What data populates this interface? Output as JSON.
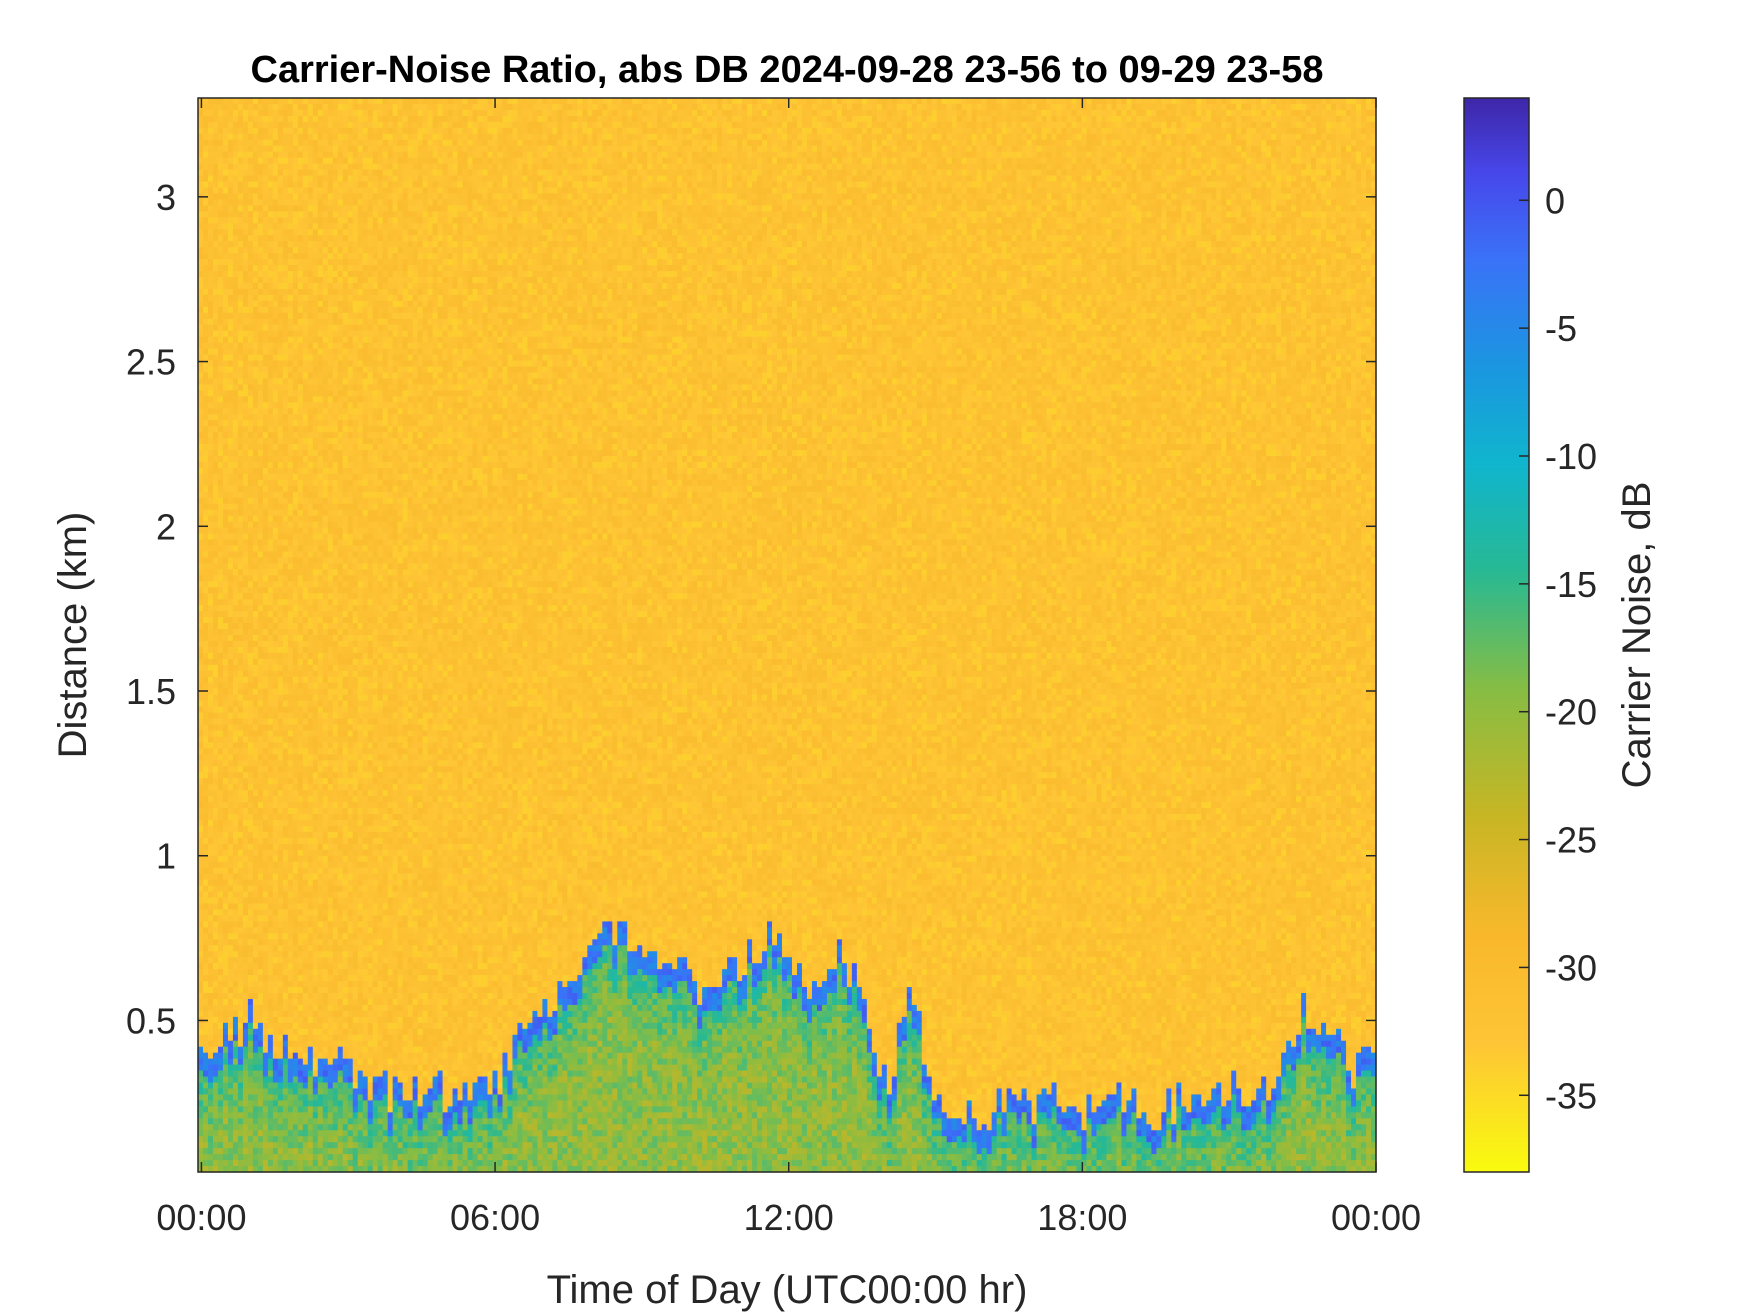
{
  "chart_data": {
    "type": "heatmap",
    "title": "Carrier-Noise Ratio, abs DB 2024-09-28 23-56 to 09-29 23-58",
    "xlabel": "Time of Day (UTC00:00 hr)",
    "ylabel": "Distance (km)",
    "colorbar_label": "Carrier Noise, dB",
    "x_range_hours": [
      -0.07,
      24.0
    ],
    "y_range_km": [
      0.04,
      3.3
    ],
    "c_range_db": [
      -38,
      4
    ],
    "x_ticks": [
      {
        "value": 0,
        "label": "00:00"
      },
      {
        "value": 6,
        "label": "06:00"
      },
      {
        "value": 12,
        "label": "12:00"
      },
      {
        "value": 18,
        "label": "18:00"
      },
      {
        "value": 24,
        "label": "00:00"
      }
    ],
    "y_ticks": [
      {
        "value": 0.5,
        "label": "0.5"
      },
      {
        "value": 1,
        "label": "1"
      },
      {
        "value": 1.5,
        "label": "1.5"
      },
      {
        "value": 2,
        "label": "2"
      },
      {
        "value": 2.5,
        "label": "2.5"
      },
      {
        "value": 3,
        "label": "3"
      }
    ],
    "c_ticks": [
      {
        "value": 0,
        "label": "0"
      },
      {
        "value": -5,
        "label": "-5"
      },
      {
        "value": -10,
        "label": "-10"
      },
      {
        "value": -15,
        "label": "-15"
      },
      {
        "value": -20,
        "label": "-20"
      },
      {
        "value": -25,
        "label": "-25"
      },
      {
        "value": -30,
        "label": "-30"
      },
      {
        "value": -35,
        "label": "-35"
      }
    ],
    "background_level_db": -32,
    "boundary_layer_top_km": {
      "hours": [
        0,
        0.5,
        1,
        1.5,
        2,
        2.5,
        3,
        3.5,
        4,
        4.5,
        5,
        5.5,
        6,
        6.5,
        7,
        7.5,
        8,
        8.5,
        9,
        9.5,
        10,
        10.5,
        11,
        11.5,
        12,
        12.5,
        13,
        13.5,
        14,
        14.5,
        15,
        15.5,
        16,
        16.5,
        17,
        17.5,
        18,
        18.5,
        19,
        19.5,
        20,
        20.5,
        21,
        21.5,
        22,
        22.5,
        23,
        23.5,
        24
      ],
      "values": [
        0.4,
        0.45,
        0.5,
        0.42,
        0.38,
        0.4,
        0.35,
        0.3,
        0.27,
        0.3,
        0.28,
        0.28,
        0.3,
        0.45,
        0.55,
        0.62,
        0.7,
        0.8,
        0.72,
        0.7,
        0.62,
        0.6,
        0.68,
        0.75,
        0.7,
        0.6,
        0.7,
        0.62,
        0.28,
        0.62,
        0.25,
        0.22,
        0.22,
        0.26,
        0.24,
        0.25,
        0.22,
        0.25,
        0.25,
        0.22,
        0.26,
        0.28,
        0.3,
        0.25,
        0.3,
        0.55,
        0.5,
        0.35,
        0.4
      ]
    }
  }
}
